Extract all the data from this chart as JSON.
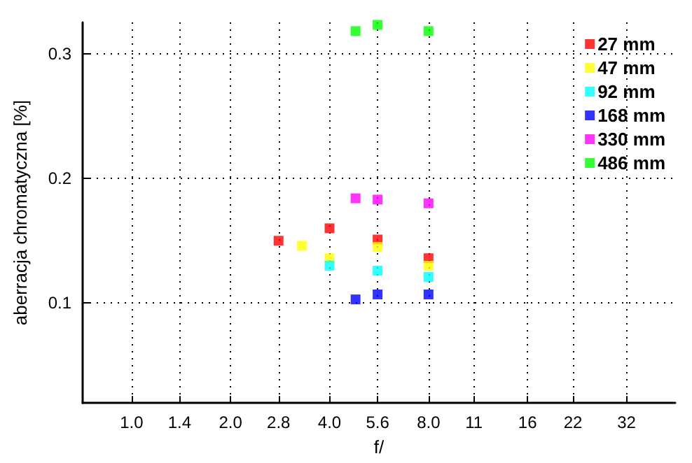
{
  "chart_data": {
    "type": "scatter",
    "xlabel": "f/",
    "ylabel": "aberracja chromatyczna [%]",
    "log": "x",
    "xlim": [
      0.71,
      45
    ],
    "xticks": [
      {
        "value": 1,
        "label": "1.0"
      },
      1.4,
      {
        "value": 2,
        "label": "2.0"
      },
      2.8,
      {
        "value": 4,
        "label": "4.0"
      },
      5.6,
      {
        "value": 8,
        "label": "8.0"
      },
      11,
      16,
      22,
      32
    ],
    "ylim": [
      0.02,
      0.325
    ],
    "yticks": [
      0.1,
      0.2,
      0.3
    ],
    "grid": true,
    "legend": "top right",
    "marker": "square",
    "series": [
      {
        "name": "27 mm",
        "color": "#ff0000",
        "x": [
          2.8,
          4.0,
          5.6,
          8.0
        ],
        "values": [
          0.15,
          0.16,
          0.151,
          0.136
        ]
      },
      {
        "name": "47 mm",
        "color": "#ffff00",
        "x": [
          3.3,
          4.0,
          5.6,
          8.0
        ],
        "values": [
          0.146,
          0.136,
          0.145,
          0.13
        ]
      },
      {
        "name": "92 mm",
        "color": "#00ffff",
        "x": [
          4.0,
          5.6,
          8.0
        ],
        "values": [
          0.13,
          0.126,
          0.121
        ]
      },
      {
        "name": "168 mm",
        "color": "#0000ff",
        "x": [
          4.8,
          5.6,
          8.0
        ],
        "values": [
          0.103,
          0.107,
          0.107
        ]
      },
      {
        "name": "330 mm",
        "color": "#ff00ff",
        "x": [
          4.8,
          5.6,
          8.0
        ],
        "values": [
          0.184,
          0.183,
          0.18
        ]
      },
      {
        "name": "486 mm",
        "color": "#00ff00",
        "x": [
          4.8,
          5.6,
          8.0
        ],
        "values": [
          0.318,
          0.323,
          0.318
        ]
      }
    ]
  }
}
